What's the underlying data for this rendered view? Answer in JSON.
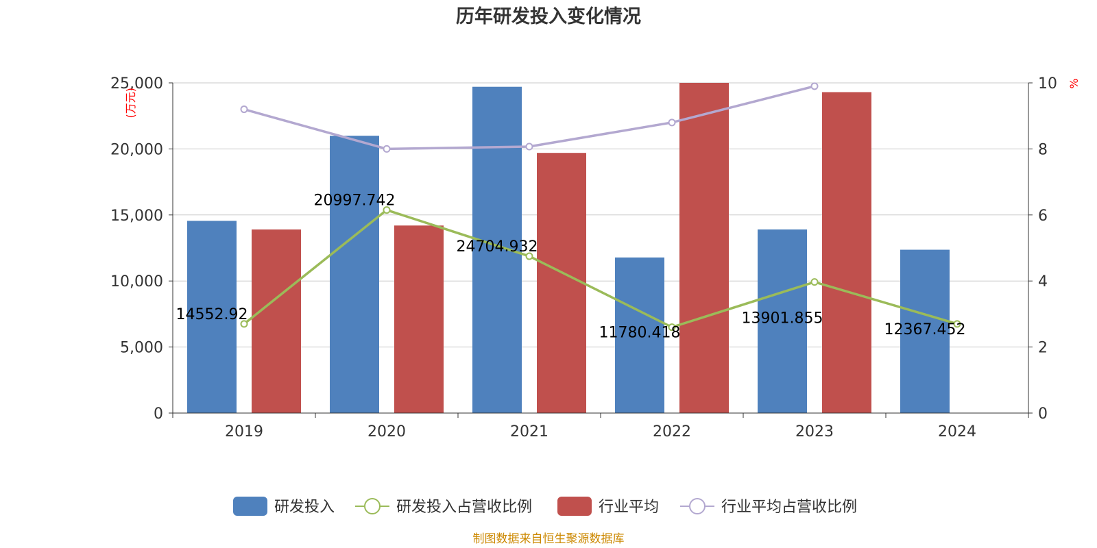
{
  "chart_data": {
    "type": "bar",
    "title": "历年研发投入变化情况",
    "categories": [
      "2019",
      "2020",
      "2021",
      "2022",
      "2023",
      "2024"
    ],
    "y_left": {
      "unit": "(万元)",
      "ylim": [
        0,
        25000
      ],
      "ticks": [
        "0",
        "5,000",
        "10,000",
        "15,000",
        "20,000",
        "25,000"
      ]
    },
    "y_right": {
      "unit": "%",
      "ylim": [
        0,
        10
      ],
      "ticks": [
        "0",
        "2",
        "4",
        "6",
        "8",
        "10"
      ]
    },
    "grid": true,
    "legend_position": "bottom",
    "series": [
      {
        "name": "研发投入",
        "kind": "bar",
        "axis": "left",
        "color": "#4f81bd",
        "values": [
          14552.92,
          20997.742,
          24704.932,
          11780.418,
          13901.855,
          12367.452
        ],
        "labels": [
          "14552.92",
          "20997.742",
          "24704.932",
          "11780.418",
          "13901.855",
          "12367.452"
        ]
      },
      {
        "name": "研发投入占营收比例",
        "kind": "line",
        "axis": "right",
        "color": "#9bbb59",
        "values": [
          2.7,
          6.15,
          4.75,
          2.6,
          3.97,
          2.7
        ]
      },
      {
        "name": "行业平均",
        "kind": "bar",
        "axis": "left",
        "color": "#c0504d",
        "values": [
          13900,
          14200,
          19700,
          25000,
          24300,
          null
        ]
      },
      {
        "name": "行业平均占营收比例",
        "kind": "line",
        "axis": "right",
        "color": "#b3a8d0",
        "values": [
          9.2,
          8.0,
          8.07,
          8.8,
          9.9,
          null
        ]
      }
    ]
  },
  "source_note": "制图数据来自恒生聚源数据库",
  "colors": {
    "axis": "#333333",
    "grid": "#c8c8c8",
    "unit_text": "#ff0000",
    "source_text": "#cc8800"
  }
}
